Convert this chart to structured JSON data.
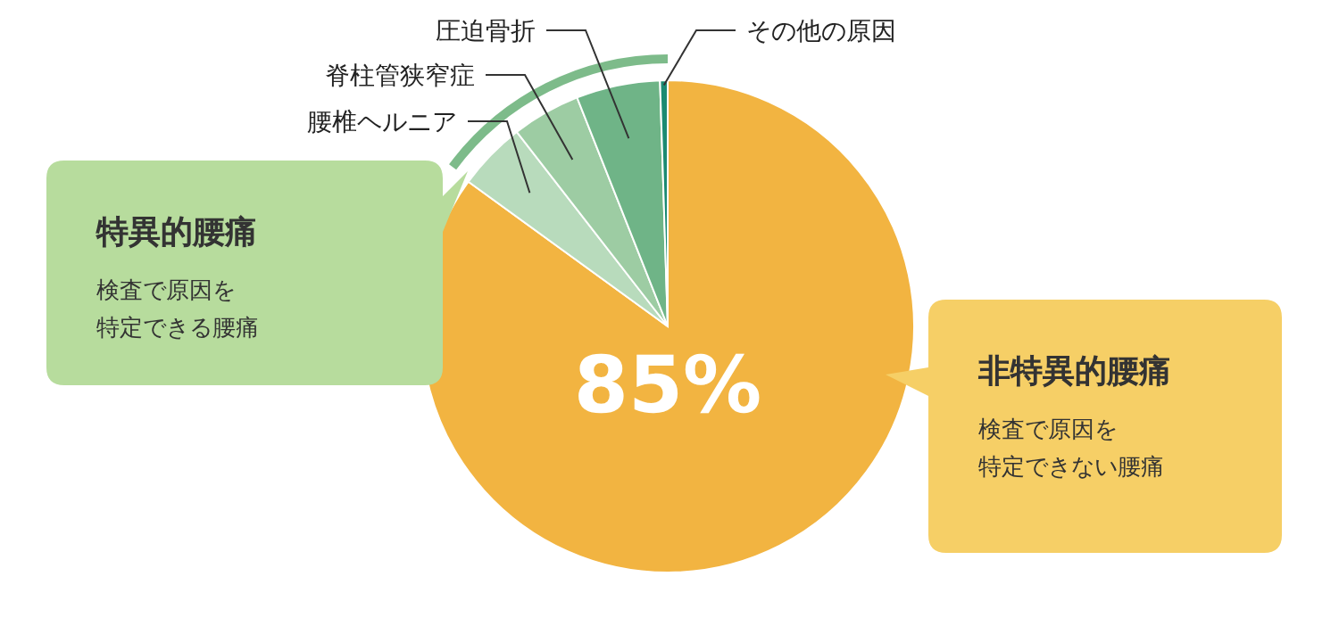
{
  "chart_data": {
    "type": "pie",
    "categories": [
      "非特異的腰痛",
      "腰椎ヘルニア",
      "脊柱管狭窄症",
      "圧迫骨折",
      "その他の原因"
    ],
    "values": [
      85,
      4.5,
      4.5,
      5.5,
      0.5
    ],
    "colors": [
      "#f2b441",
      "#b8dbbc",
      "#9dcca3",
      "#6fb487",
      "#1b8a72"
    ],
    "value_labels": [
      "85%",
      null,
      null,
      null,
      null
    ],
    "annotations": [
      "特異的腰痛",
      "検査で原因を",
      "特定できる腰痛",
      "検査で原因を",
      "特定できない腰痛"
    ],
    "legend": false
  }
}
